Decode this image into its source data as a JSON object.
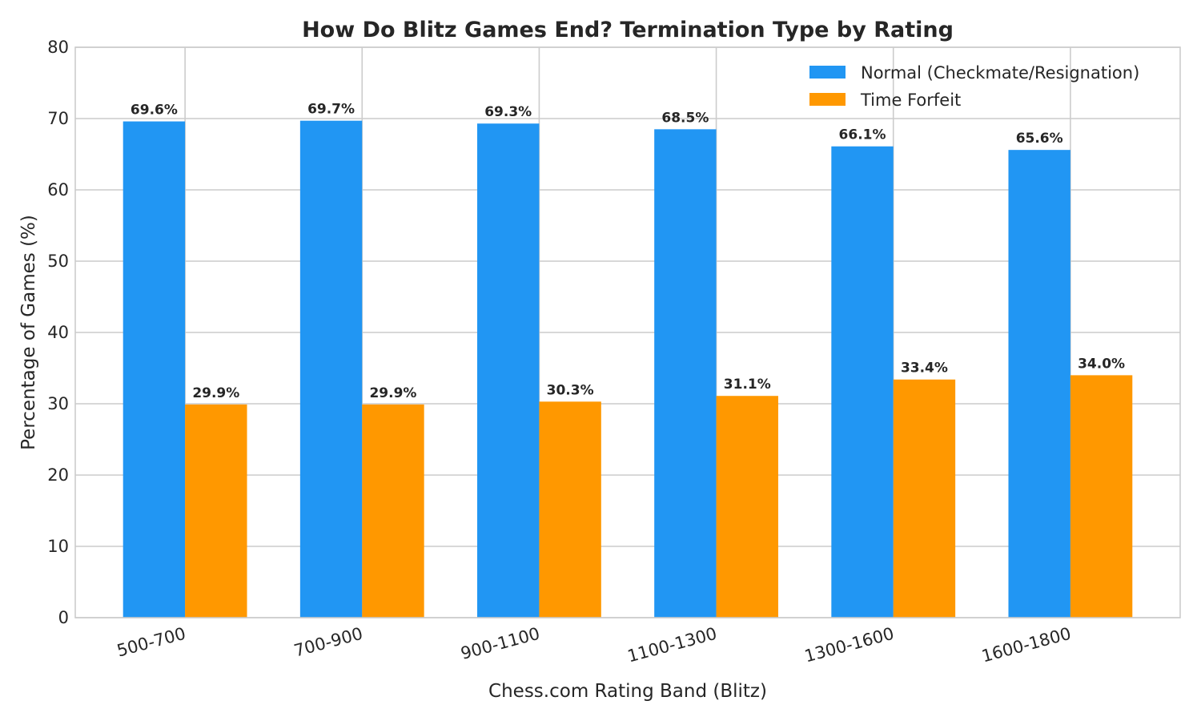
{
  "chart_data": {
    "type": "bar",
    "title": "How Do Blitz Games End? Termination Type by Rating",
    "xlabel": "Chess.com Rating Band (Blitz)",
    "ylabel": "Percentage of Games (%)",
    "ylim": [
      0,
      80
    ],
    "yticks": [
      0,
      10,
      20,
      30,
      40,
      50,
      60,
      70,
      80
    ],
    "grid": true,
    "legend_position": "top-right",
    "categories": [
      "500-700",
      "700-900",
      "900-1100",
      "1100-1300",
      "1300-1600",
      "1600-1800"
    ],
    "series": [
      {
        "name": "Normal (Checkmate/Resignation)",
        "color": "#2196F3",
        "values": [
          69.6,
          69.7,
          69.3,
          68.5,
          66.1,
          65.6
        ],
        "labels": [
          "69.6%",
          "69.7%",
          "69.3%",
          "68.5%",
          "66.1%",
          "65.6%"
        ]
      },
      {
        "name": "Time Forfeit",
        "color": "#FF9800",
        "values": [
          29.9,
          29.9,
          30.3,
          31.1,
          33.4,
          34.0
        ],
        "labels": [
          "29.9%",
          "29.9%",
          "30.3%",
          "31.1%",
          "33.4%",
          "34.0%"
        ]
      }
    ]
  }
}
